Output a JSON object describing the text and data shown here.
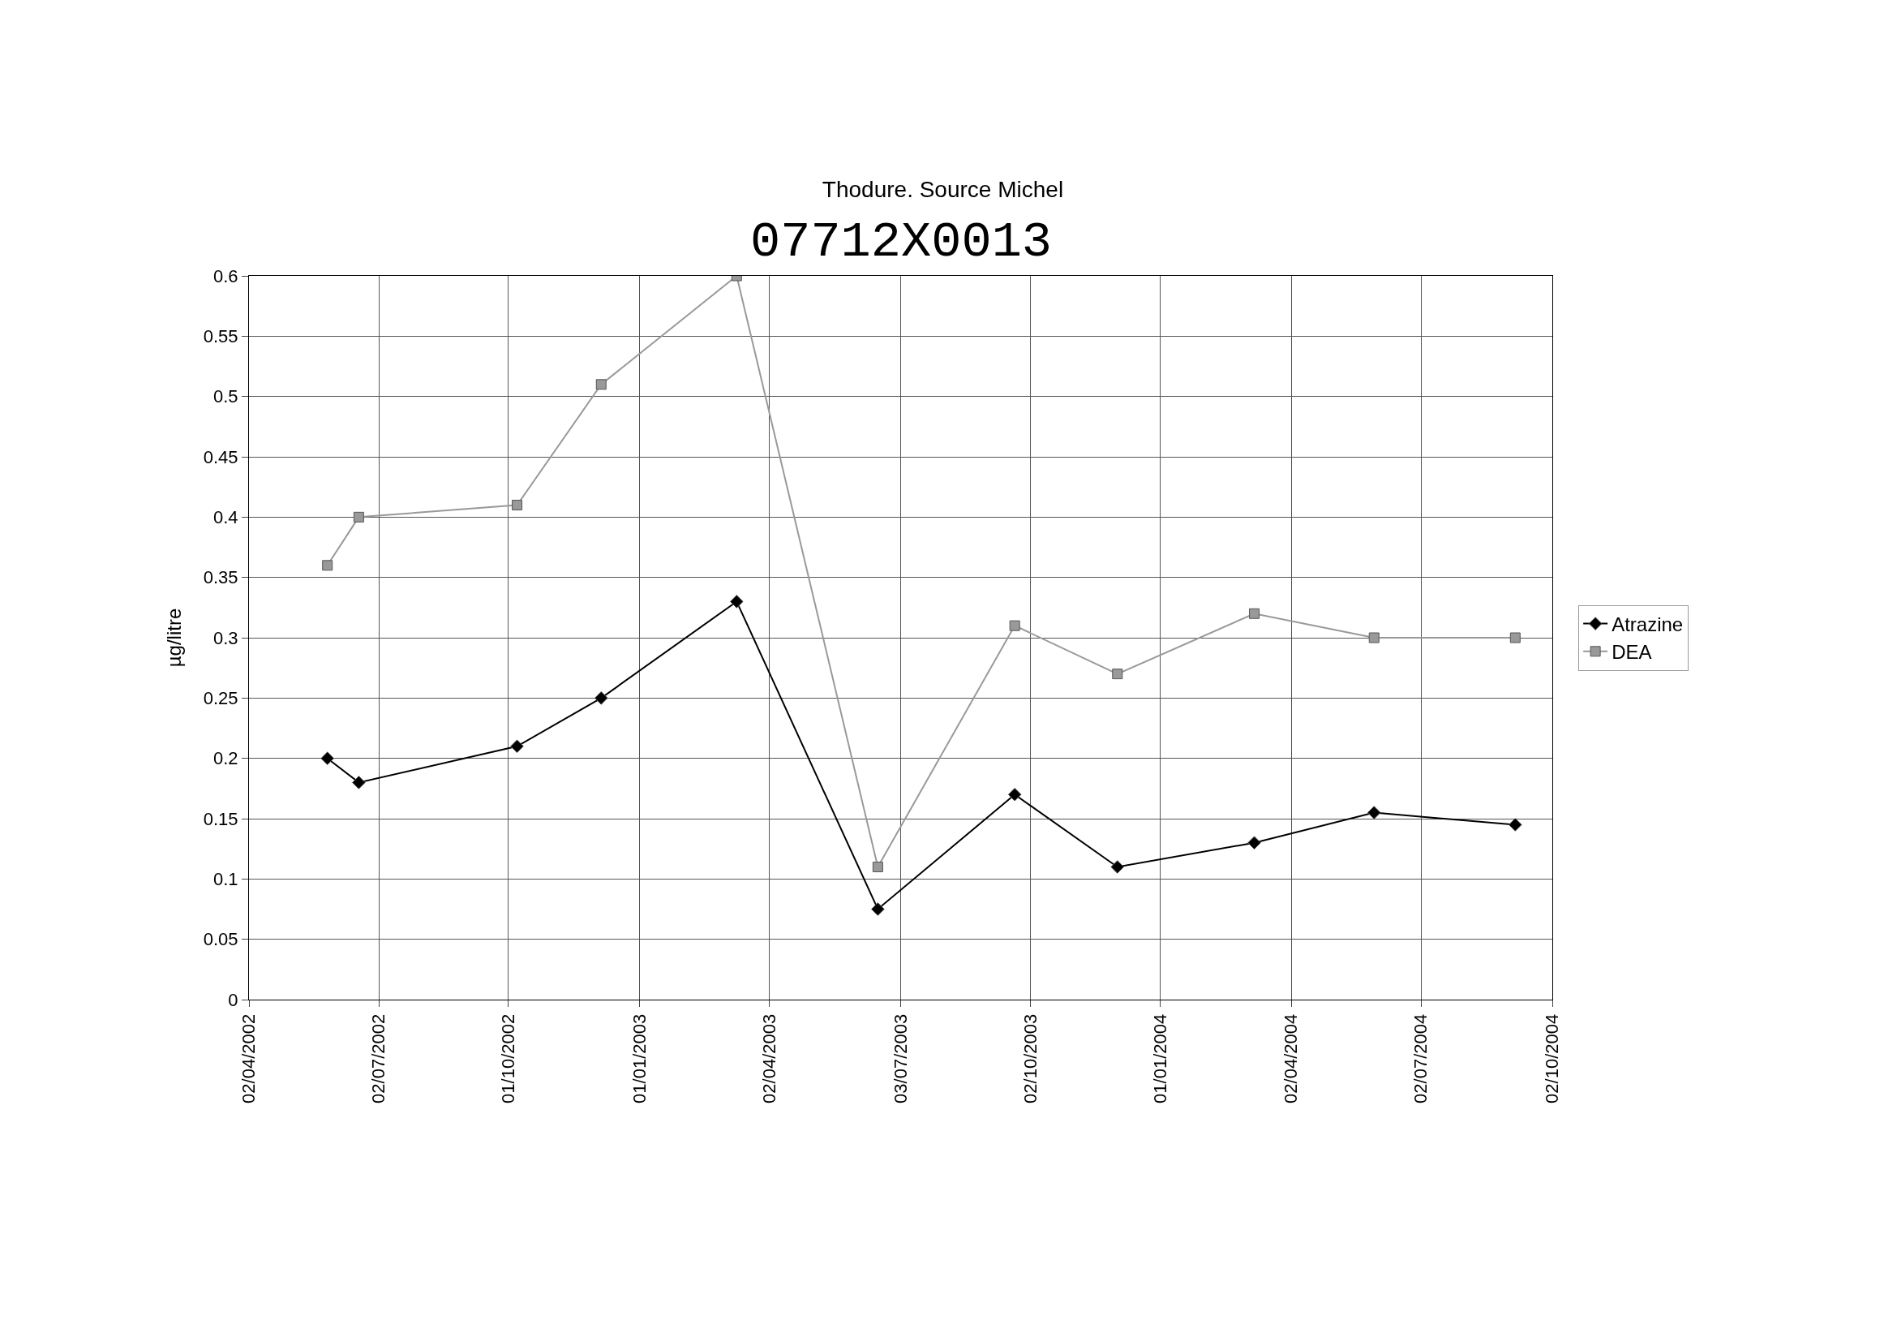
{
  "chart_data": {
    "type": "line",
    "title": "Thodure. Source Michel",
    "subtitle": "07712X0013",
    "ylabel": "µg/litre",
    "x": [
      "2002-05-27",
      "2002-06-18",
      "2002-10-07",
      "2002-12-05",
      "2003-03-10",
      "2003-06-17",
      "2003-09-21",
      "2003-12-02",
      "2004-03-07",
      "2004-05-30",
      "2004-09-06"
    ],
    "series": [
      {
        "name": "Atrazine",
        "color": "#000000",
        "marker": "diamond",
        "values": [
          0.2,
          0.18,
          0.21,
          0.25,
          0.33,
          0.075,
          0.17,
          0.11,
          0.13,
          0.155,
          0.145
        ]
      },
      {
        "name": "DEA",
        "color": "#999999",
        "marker": "square",
        "values": [
          0.36,
          0.4,
          0.41,
          0.51,
          0.6,
          0.11,
          0.31,
          0.27,
          0.32,
          0.3,
          0.3
        ]
      }
    ],
    "xlim": [
      "2002-04-02",
      "2004-10-02"
    ],
    "xticks": [
      {
        "value": "2002-04-02",
        "label": "02/04/2002"
      },
      {
        "value": "2002-07-02",
        "label": "02/07/2002"
      },
      {
        "value": "2002-10-01",
        "label": "01/10/2002"
      },
      {
        "value": "2003-01-01",
        "label": "01/01/2003"
      },
      {
        "value": "2003-04-02",
        "label": "02/04/2003"
      },
      {
        "value": "2003-07-03",
        "label": "03/07/2003"
      },
      {
        "value": "2003-10-02",
        "label": "02/10/2003"
      },
      {
        "value": "2004-01-01",
        "label": "01/01/2004"
      },
      {
        "value": "2004-04-02",
        "label": "02/04/2004"
      },
      {
        "value": "2004-07-02",
        "label": "02/07/2004"
      },
      {
        "value": "2004-10-02",
        "label": "02/10/2004"
      }
    ],
    "ylim": [
      0,
      0.6
    ],
    "yticks": [
      0,
      0.05,
      0.1,
      0.15,
      0.2,
      0.25,
      0.3,
      0.35,
      0.4,
      0.45,
      0.5,
      0.55,
      0.6
    ],
    "grid": true,
    "legend": "right",
    "line_style": "solid"
  }
}
